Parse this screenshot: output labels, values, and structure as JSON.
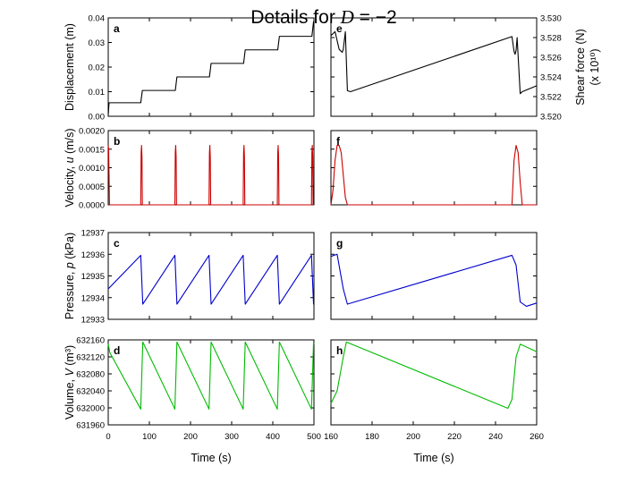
{
  "figure_title": "Details for D = −2",
  "figure_title_parts": {
    "prefix": "Details for ",
    "var": "D",
    "suffix": " = −2"
  },
  "chart_data": [
    {
      "type": "line",
      "panel": "a",
      "ylabel": "Displacement (m)",
      "xlim": [
        0,
        500
      ],
      "ylim": [
        0,
        0.04
      ],
      "yticks": [
        "0.00",
        "0.01",
        "0.02",
        "0.03",
        "0.04"
      ],
      "yticks_values": [
        0,
        0.01,
        0.02,
        0.03,
        0.04
      ],
      "series": [
        {
          "color": "#000000",
          "x": [
            0,
            2,
            79,
            83,
            163,
            167,
            246,
            250,
            329,
            333,
            412,
            416,
            495,
            499,
            500
          ],
          "y": [
            0.0005,
            0.0055,
            0.0055,
            0.0105,
            0.0105,
            0.016,
            0.016,
            0.0215,
            0.0215,
            0.027,
            0.027,
            0.0325,
            0.0325,
            0.0385,
            0.0385
          ]
        }
      ]
    },
    {
      "type": "line",
      "panel": "b",
      "ylabel": "Velocity, u (m/s)",
      "xlim": [
        0,
        500
      ],
      "ylim": [
        0,
        0.002
      ],
      "yticks": [
        "0.0000",
        "0.0005",
        "0.0010",
        "0.0015",
        "0.0020"
      ],
      "yticks_values": [
        0,
        0.0005,
        0.001,
        0.0015,
        0.002
      ],
      "series": [
        {
          "color": "#cc0000",
          "x": [
            0,
            1,
            2,
            3,
            79,
            80,
            81,
            82,
            83,
            162,
            163,
            164,
            165,
            166,
            245,
            246,
            247,
            248,
            249,
            328,
            329,
            330,
            331,
            332,
            411,
            412,
            413,
            414,
            415,
            494,
            495,
            496,
            497,
            498,
            500
          ],
          "y": [
            0.0016,
            0.0015,
            0.0008,
            0,
            0,
            0.0014,
            0.0016,
            0.0013,
            0,
            0,
            0.0014,
            0.0016,
            0.0013,
            0,
            0,
            0.0014,
            0.0016,
            0.0013,
            0,
            0,
            0.0014,
            0.0016,
            0.0013,
            0,
            0,
            0.0014,
            0.0016,
            0.0013,
            0,
            0,
            0.0014,
            0.0016,
            0.0013,
            0,
            0
          ]
        }
      ]
    },
    {
      "type": "line",
      "panel": "c",
      "ylabel": "Pressure, p (kPa)",
      "xlim": [
        0,
        500
      ],
      "ylim": [
        12933,
        12937
      ],
      "yticks": [
        "12933",
        "12934",
        "12935",
        "12936",
        "12937"
      ],
      "yticks_values": [
        12933,
        12934,
        12935,
        12936,
        12937
      ],
      "series": [
        {
          "color": "#0000cc",
          "x": [
            0,
            79,
            84,
            162,
            167,
            245,
            250,
            328,
            333,
            411,
            416,
            494,
            499,
            500
          ],
          "y": [
            12934.4,
            12935.95,
            12933.7,
            12935.95,
            12933.7,
            12935.95,
            12933.7,
            12935.95,
            12933.7,
            12935.95,
            12933.7,
            12935.95,
            12933.7,
            12933.7
          ]
        }
      ]
    },
    {
      "type": "line",
      "panel": "d",
      "ylabel": "Volume, V (m³)",
      "xlabel": "Time (s)",
      "xlim": [
        0,
        500
      ],
      "ylim": [
        631960,
        632160
      ],
      "xticks": [
        "0",
        "100",
        "200",
        "300",
        "400",
        "500"
      ],
      "xticks_values": [
        0,
        100,
        200,
        300,
        400,
        500
      ],
      "yticks": [
        "631960",
        "632000",
        "632040",
        "632080",
        "632120",
        "632160"
      ],
      "yticks_values": [
        631960,
        632000,
        632040,
        632080,
        632120,
        632160
      ],
      "series": [
        {
          "color": "#00bb00",
          "x": [
            0,
            4,
            79,
            84,
            162,
            167,
            245,
            250,
            328,
            333,
            411,
            416,
            494,
            499,
            500
          ],
          "y": [
            632150,
            632130,
            631997,
            632155,
            631997,
            632155,
            631997,
            632155,
            631997,
            632155,
            631997,
            632155,
            631997,
            632155,
            632150
          ]
        }
      ]
    },
    {
      "type": "line",
      "panel": "e",
      "ylabel": "Shear force (N) (x 10¹⁰)",
      "xlim": [
        160,
        260
      ],
      "ylim": [
        3.52,
        3.53
      ],
      "yticks": [
        "3.520",
        "3.522",
        "3.524",
        "3.526",
        "3.528",
        "3.530"
      ],
      "yticks_values": [
        3.52,
        3.522,
        3.524,
        3.526,
        3.528,
        3.53
      ],
      "series": [
        {
          "color": "#000000",
          "x": [
            160,
            162,
            164,
            165.5,
            166,
            166.5,
            167,
            168,
            169.5,
            248,
            249,
            249.5,
            250,
            250.5,
            252,
            253,
            260
          ],
          "y": [
            3.5282,
            3.5286,
            3.5268,
            3.5265,
            3.5268,
            3.5277,
            3.5286,
            3.5226,
            3.5225,
            3.5281,
            3.5266,
            3.5263,
            3.5267,
            3.528,
            3.5223,
            3.5225,
            3.5231
          ]
        }
      ]
    },
    {
      "type": "line",
      "panel": "f",
      "xlim": [
        160,
        260
      ],
      "ylim": [
        0,
        0.002
      ],
      "series": [
        {
          "color": "#cc0000",
          "x": [
            160,
            161,
            162,
            163,
            164,
            165,
            166,
            167,
            168,
            248,
            249,
            250,
            251,
            252,
            253,
            260
          ],
          "y": [
            0,
            0.0004,
            0.0012,
            0.0016,
            0.0016,
            0.0014,
            0.0008,
            0.0002,
            0,
            0,
            0.0012,
            0.0016,
            0.0014,
            0.0006,
            0,
            0
          ]
        }
      ]
    },
    {
      "type": "line",
      "panel": "g",
      "xlim": [
        160,
        260
      ],
      "ylim": [
        12933,
        12937
      ],
      "series": [
        {
          "color": "#0000cc",
          "x": [
            160,
            163,
            166,
            168,
            248,
            250,
            252,
            255,
            260
          ],
          "y": [
            12935.9,
            12936.0,
            12934.4,
            12933.7,
            12935.95,
            12935.5,
            12933.8,
            12933.6,
            12933.75
          ]
        }
      ]
    },
    {
      "type": "line",
      "panel": "h",
      "xlabel": "Time (s)",
      "xlim": [
        160,
        260
      ],
      "ylim": [
        631960,
        632160
      ],
      "xticks": [
        "160",
        "180",
        "200",
        "220",
        "240",
        "260"
      ],
      "xticks_values": [
        160,
        180,
        200,
        220,
        240,
        260
      ],
      "series": [
        {
          "color": "#00bb00",
          "x": [
            160,
            163,
            166,
            167.5,
            246,
            248,
            250,
            252,
            260
          ],
          "y": [
            632010,
            632040,
            632120,
            632155,
            631999,
            632020,
            632120,
            632150,
            632132
          ]
        }
      ]
    }
  ]
}
